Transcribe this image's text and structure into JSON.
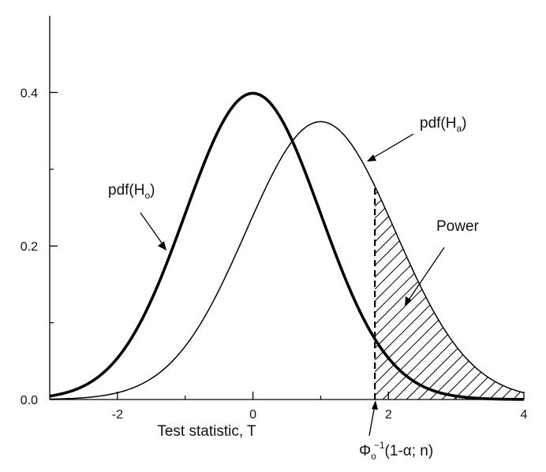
{
  "chart_data": {
    "type": "line",
    "title": "",
    "xlabel": "Test statistic, T",
    "ylabel": "",
    "xlim": [
      -3,
      4
    ],
    "ylim": [
      0,
      0.5
    ],
    "x_ticks": [
      -2,
      0,
      2,
      4
    ],
    "x_tick_labels": [
      "-2",
      "0",
      "2",
      "4"
    ],
    "y_ticks": [
      0.0,
      0.2,
      0.4
    ],
    "y_tick_labels": [
      "0.0",
      "0.2",
      "0.4"
    ],
    "x_minor_ticks": [
      -1,
      1,
      3
    ],
    "y_minor_ticks": [
      0.1,
      0.3
    ],
    "grid": false,
    "legend": "none",
    "series": [
      {
        "name": "pdf(Ho)",
        "distribution": "normal",
        "mean": 0,
        "sd": 1,
        "peak": 0.399,
        "line_weight": "thick",
        "color": "#000000"
      },
      {
        "name": "pdf(Ha)",
        "distribution": "normal",
        "mean": 1,
        "sd": 1.1,
        "peak": 0.362,
        "line_weight": "thin",
        "color": "#000000"
      }
    ],
    "critical_value": {
      "x": 1.8,
      "style": "dashed",
      "label": "Φo−1(1-α; n)"
    },
    "shaded_region": {
      "label": "Power",
      "under_series": "pdf(Ha)",
      "from_x": 1.8,
      "to_x": 4,
      "pattern": "diagonal-hatch"
    },
    "annotations": [
      {
        "target": "pdf(Ho)",
        "label": "pdf(Ho)"
      },
      {
        "target": "pdf(Ha)",
        "label": "pdf(Ha)"
      },
      {
        "target": "shaded_region",
        "label": "Power"
      },
      {
        "target": "critical_value",
        "label": "Φo−1(1-α; n)"
      }
    ]
  }
}
